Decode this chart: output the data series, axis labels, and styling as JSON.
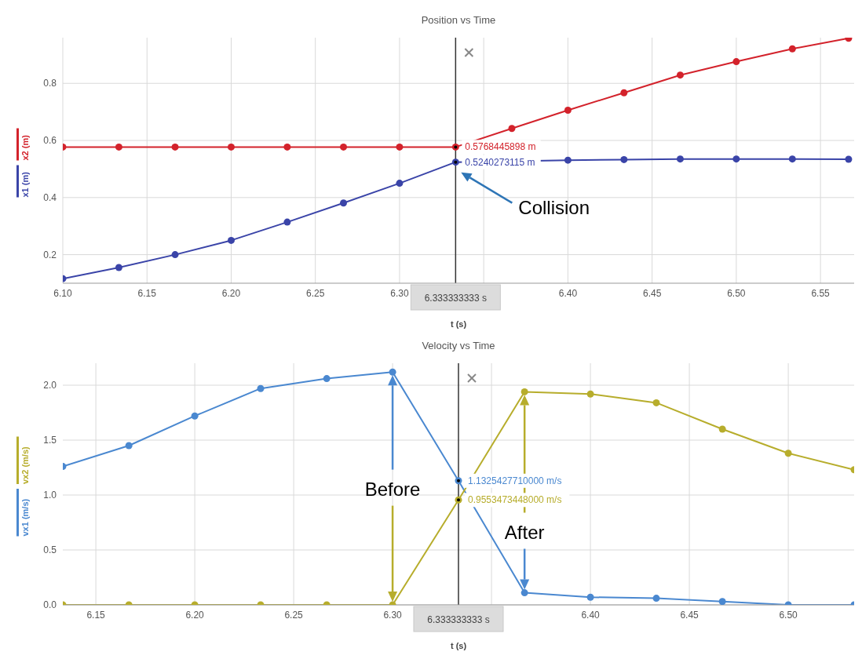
{
  "chart_data": [
    {
      "type": "line",
      "title": "Position vs Time",
      "xlabel": "t (s)",
      "x": [
        6.1,
        6.1333,
        6.1667,
        6.2,
        6.2333,
        6.2667,
        6.3,
        6.3333,
        6.3667,
        6.4,
        6.4333,
        6.4667,
        6.5,
        6.5333,
        6.5667
      ],
      "series": [
        {
          "name": "x1 (m)",
          "color": "#3a44a8",
          "values": [
            0.116,
            0.155,
            0.2,
            0.25,
            0.314,
            0.381,
            0.45,
            0.524,
            null,
            0.531,
            0.533,
            0.535,
            0.535,
            0.535,
            0.534
          ]
        },
        {
          "name": "x2 (m)",
          "color": "#d3222b",
          "values": [
            0.577,
            0.577,
            0.577,
            0.577,
            0.577,
            0.577,
            0.577,
            0.577,
            0.642,
            0.706,
            0.767,
            0.829,
            0.876,
            0.921,
            0.958
          ]
        }
      ],
      "xlim": [
        6.1,
        6.57
      ],
      "ylim": [
        0.1,
        0.96
      ],
      "xticks": [
        {
          "value": 6.1,
          "label": "6.10"
        },
        {
          "value": 6.15,
          "label": "6.15"
        },
        {
          "value": 6.2,
          "label": "6.20"
        },
        {
          "value": 6.25,
          "label": "6.25"
        },
        {
          "value": 6.3,
          "label": "6.30"
        },
        {
          "value": 6.35,
          "label": null
        },
        {
          "value": 6.4,
          "label": "6.40"
        },
        {
          "value": 6.45,
          "label": "6.45"
        },
        {
          "value": 6.5,
          "label": "6.50"
        },
        {
          "value": 6.55,
          "label": "6.55"
        }
      ],
      "yticks": [
        0.2,
        0.4,
        0.6,
        0.8
      ],
      "grid": true,
      "legend": "left",
      "marker": "circle",
      "line_style": "solid",
      "ref_lines": [
        {
          "axis": "x",
          "value": 6.3333,
          "label": "6.333333333 s",
          "color": "#333333"
        }
      ],
      "annotations": [
        "0.5768445898 m",
        "0.5240273115 m",
        "Collision"
      ]
    },
    {
      "type": "line",
      "title": "Velocity vs Time",
      "xlabel": "t (s)",
      "x": [
        6.1333,
        6.1667,
        6.2,
        6.2333,
        6.2667,
        6.3,
        6.3333,
        6.3667,
        6.4,
        6.4333,
        6.4667,
        6.5,
        6.5333
      ],
      "series": [
        {
          "name": "vx1 (m/s)",
          "color": "#4a88d0",
          "values": [
            1.26,
            1.45,
            1.72,
            1.97,
            2.06,
            2.12,
            1.13,
            0.11,
            0.07,
            0.06,
            0.03,
            0,
            0
          ]
        },
        {
          "name": "vx2 (m/s)",
          "color": "#b7ad2c",
          "values": [
            0,
            0,
            0,
            0,
            0,
            0,
            0.955,
            1.94,
            1.92,
            1.84,
            1.6,
            1.38,
            1.23
          ]
        }
      ],
      "xlim": [
        6.1333,
        6.5333
      ],
      "ylim": [
        0,
        2.2
      ],
      "xticks": [
        {
          "value": 6.15,
          "label": "6.15"
        },
        {
          "value": 6.2,
          "label": "6.20"
        },
        {
          "value": 6.25,
          "label": "6.25"
        },
        {
          "value": 6.3,
          "label": "6.30"
        },
        {
          "value": 6.35,
          "label": null
        },
        {
          "value": 6.4,
          "label": "6.40"
        },
        {
          "value": 6.45,
          "label": "6.45"
        },
        {
          "value": 6.5,
          "label": "6.50"
        }
      ],
      "yticks": [
        {
          "value": 0,
          "label": "0.0"
        },
        {
          "value": 0.5,
          "label": "0.5"
        },
        {
          "value": 1,
          "label": "1.0"
        },
        {
          "value": 1.5,
          "label": "1.5"
        },
        {
          "value": 2,
          "label": "2.0"
        }
      ],
      "grid": true,
      "legend": "left",
      "marker": "circle",
      "line_style": "solid",
      "ref_lines": [
        {
          "axis": "x",
          "value": 6.3333,
          "label": "6.333333333 s",
          "color": "#333333"
        }
      ],
      "annotations": [
        "1.1325427710000 m/s",
        "0.9553473448000 m/s",
        "Before",
        "After"
      ]
    }
  ]
}
